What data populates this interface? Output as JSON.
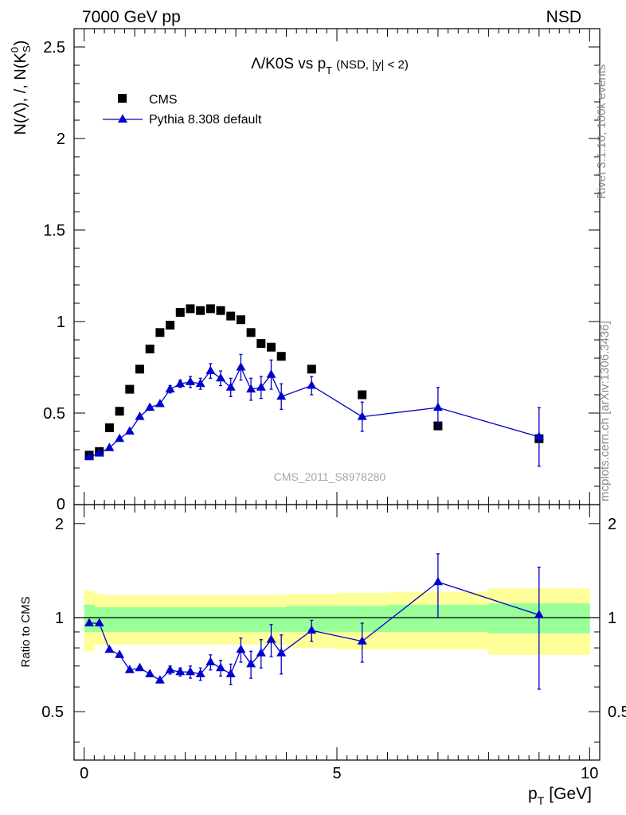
{
  "header": {
    "left": "7000 GeV pp",
    "right": "NSD"
  },
  "side_labels": {
    "rivet": "Rivet 3.1.10,  100k events",
    "mcplots": "mcplots.cern.ch [arXiv:1306.3436]"
  },
  "chart_data": [
    {
      "type": "scatter",
      "title_main": "Λ/K0S vs p",
      "title_sub": "T",
      "title_extra": "(NSD, |y| < 2)",
      "ylabel": "N(Λ), /, N(K",
      "ylabel_sup": "0",
      "ylabel_sub": "S",
      "ylabel_end": ")",
      "watermark": "CMS_2011_S8978280",
      "xlim": [
        -0.2,
        10.2
      ],
      "ylim": [
        0,
        2.6
      ],
      "y_ticks": [
        0.5,
        1,
        1.5,
        2,
        2.5
      ],
      "y_tick_labels": [
        "0.5",
        "1",
        "1.5",
        "2",
        "2.5"
      ],
      "y_zero_label": "0",
      "legend_position": "top-left",
      "series": [
        {
          "name": "CMS",
          "marker": "square",
          "color": "#000000",
          "x": [
            0.1,
            0.3,
            0.5,
            0.7,
            0.9,
            1.1,
            1.3,
            1.5,
            1.7,
            1.9,
            2.1,
            2.3,
            2.5,
            2.7,
            2.9,
            3.1,
            3.3,
            3.5,
            3.7,
            3.9,
            4.5,
            5.5,
            7.0,
            9.0
          ],
          "y": [
            0.27,
            0.29,
            0.42,
            0.51,
            0.63,
            0.74,
            0.85,
            0.94,
            0.98,
            1.05,
            1.07,
            1.06,
            1.07,
            1.06,
            1.03,
            1.01,
            0.94,
            0.88,
            0.86,
            0.81,
            0.74,
            0.6,
            0.43,
            0.36
          ]
        },
        {
          "name": "Pythia 8.308 default",
          "marker": "triangle",
          "color": "#0000cc",
          "x": [
            0.1,
            0.3,
            0.5,
            0.7,
            0.9,
            1.1,
            1.3,
            1.5,
            1.7,
            1.9,
            2.1,
            2.3,
            2.5,
            2.7,
            2.9,
            3.1,
            3.3,
            3.5,
            3.7,
            3.9,
            4.5,
            5.5,
            7.0,
            9.0
          ],
          "y": [
            0.26,
            0.28,
            0.31,
            0.36,
            0.4,
            0.48,
            0.53,
            0.55,
            0.63,
            0.66,
            0.67,
            0.66,
            0.73,
            0.69,
            0.64,
            0.75,
            0.63,
            0.64,
            0.71,
            0.59,
            0.65,
            0.48,
            0.53,
            0.37
          ],
          "err": [
            0.01,
            0.01,
            0.01,
            0.01,
            0.01,
            0.01,
            0.01,
            0.01,
            0.02,
            0.02,
            0.03,
            0.03,
            0.04,
            0.04,
            0.05,
            0.07,
            0.06,
            0.06,
            0.08,
            0.07,
            0.05,
            0.08,
            0.11,
            0.16
          ]
        }
      ]
    },
    {
      "type": "scatter",
      "ylabel": "Ratio to CMS",
      "xlabel_main": "p",
      "xlabel_sub": "T",
      "xlabel_unit": "[GeV]",
      "xlim": [
        -0.2,
        10.2
      ],
      "ylim": [
        0.35,
        2.3
      ],
      "log_y": true,
      "x_ticks": [
        0,
        5,
        10
      ],
      "x_tick_labels": [
        "0",
        "5",
        "10"
      ],
      "y_ticks": [
        0.5,
        1,
        2
      ],
      "y_tick_labels": [
        "0.5",
        "1",
        "2"
      ],
      "reference_line": 1.0,
      "bands": {
        "green_color": "#99ff99",
        "yellow_color": "#ffff99",
        "edges": [
          0.0,
          0.2,
          0.4,
          0.6,
          0.8,
          1.0,
          1.2,
          1.4,
          1.6,
          1.8,
          2.0,
          2.2,
          2.4,
          2.6,
          2.8,
          3.0,
          3.2,
          3.4,
          3.6,
          3.8,
          4.0,
          5.0,
          6.0,
          8.0,
          10.0
        ],
        "green_lo": [
          0.9,
          0.9,
          0.9,
          0.9,
          0.9,
          0.9,
          0.9,
          0.9,
          0.9,
          0.9,
          0.9,
          0.9,
          0.9,
          0.9,
          0.9,
          0.9,
          0.9,
          0.9,
          0.9,
          0.9,
          0.9,
          0.9,
          0.9,
          0.89
        ],
        "green_hi": [
          1.1,
          1.08,
          1.08,
          1.08,
          1.08,
          1.08,
          1.08,
          1.08,
          1.08,
          1.08,
          1.08,
          1.08,
          1.08,
          1.08,
          1.08,
          1.08,
          1.08,
          1.08,
          1.08,
          1.08,
          1.09,
          1.09,
          1.1,
          1.11
        ],
        "yellow_lo": [
          0.78,
          0.82,
          0.82,
          0.82,
          0.82,
          0.82,
          0.82,
          0.82,
          0.82,
          0.82,
          0.82,
          0.82,
          0.82,
          0.82,
          0.82,
          0.82,
          0.82,
          0.82,
          0.82,
          0.82,
          0.8,
          0.79,
          0.79,
          0.76
        ],
        "yellow_hi": [
          1.22,
          1.19,
          1.18,
          1.18,
          1.18,
          1.18,
          1.18,
          1.18,
          1.18,
          1.18,
          1.18,
          1.18,
          1.18,
          1.18,
          1.18,
          1.18,
          1.18,
          1.18,
          1.18,
          1.18,
          1.19,
          1.2,
          1.21,
          1.24
        ]
      },
      "series": [
        {
          "name": "Pythia 8.308 default",
          "marker": "triangle",
          "color": "#0000cc",
          "x": [
            0.1,
            0.3,
            0.5,
            0.7,
            0.9,
            1.1,
            1.3,
            1.5,
            1.7,
            1.9,
            2.1,
            2.3,
            2.5,
            2.7,
            2.9,
            3.1,
            3.3,
            3.5,
            3.7,
            3.9,
            4.5,
            5.5,
            7.0,
            9.0
          ],
          "y": [
            0.96,
            0.96,
            0.79,
            0.76,
            0.68,
            0.69,
            0.66,
            0.63,
            0.68,
            0.67,
            0.67,
            0.66,
            0.72,
            0.69,
            0.66,
            0.79,
            0.71,
            0.77,
            0.85,
            0.77,
            0.91,
            0.84,
            1.3,
            1.02
          ],
          "err": [
            0.01,
            0.01,
            0.01,
            0.01,
            0.01,
            0.01,
            0.01,
            0.01,
            0.02,
            0.02,
            0.03,
            0.03,
            0.04,
            0.04,
            0.05,
            0.07,
            0.07,
            0.08,
            0.1,
            0.11,
            0.07,
            0.12,
            0.3,
            0.43
          ]
        }
      ]
    }
  ]
}
